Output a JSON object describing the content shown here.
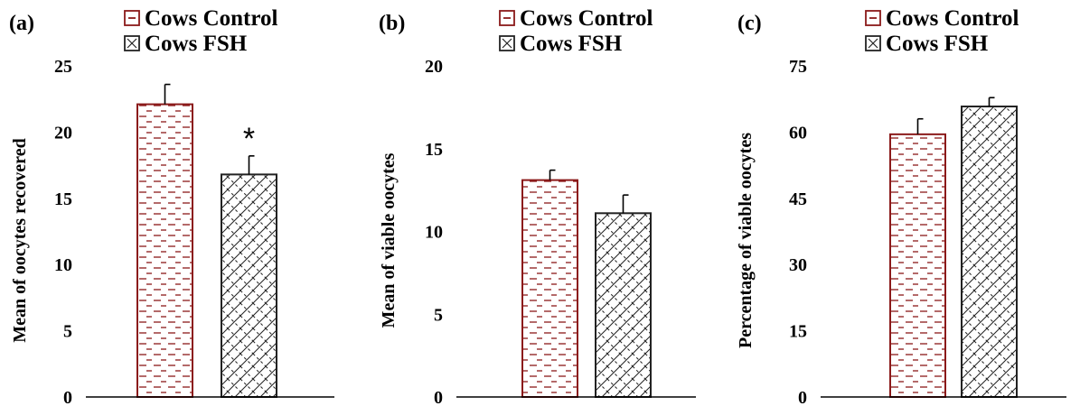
{
  "figure": {
    "legend": [
      {
        "label": "Cows Control",
        "color": "#8b1a1a",
        "pattern": "dashes"
      },
      {
        "label": "Cows FSH",
        "color": "#222222",
        "pattern": "crosshatch"
      }
    ]
  },
  "chart_data": [
    {
      "type": "bar",
      "panel_label": "(a)",
      "title": "",
      "xlabel": "",
      "ylabel": "Mean of oocytes recovered",
      "ylim": [
        0,
        25
      ],
      "yticks": [
        0,
        5,
        10,
        15,
        20,
        25
      ],
      "categories": [
        "Cows Control",
        "Cows FSH"
      ],
      "series": [
        {
          "values": [
            22.1,
            16.8
          ],
          "errors": [
            1.5,
            1.4
          ]
        }
      ],
      "annotations": [
        {
          "category": "Cows FSH",
          "text": "*"
        }
      ],
      "legend_entries": [
        "Cows Control",
        "Cows FSH"
      ],
      "legend_position": "top",
      "grid": false
    },
    {
      "type": "bar",
      "panel_label": "(b)",
      "title": "",
      "xlabel": "",
      "ylabel": "Mean of viable oocytes",
      "ylim": [
        0,
        20
      ],
      "yticks": [
        0,
        5,
        10,
        15,
        20
      ],
      "categories": [
        "Cows Control",
        "Cows FSH"
      ],
      "series": [
        {
          "values": [
            13.1,
            11.1
          ],
          "errors": [
            0.6,
            1.1
          ]
        }
      ],
      "annotations": [],
      "legend_entries": [
        "Cows Control",
        "Cows FSH"
      ],
      "legend_position": "top",
      "grid": false
    },
    {
      "type": "bar",
      "panel_label": "(c)",
      "title": "",
      "xlabel": "",
      "ylabel": "Percentage of viable oocytes",
      "ylim": [
        0,
        75
      ],
      "yticks": [
        0,
        15,
        30,
        45,
        60,
        75
      ],
      "categories": [
        "Cows Control",
        "Cows FSH"
      ],
      "series": [
        {
          "values": [
            59.5,
            65.8
          ],
          "errors": [
            3.5,
            2.0
          ]
        }
      ],
      "annotations": [],
      "legend_entries": [
        "Cows Control",
        "Cows FSH"
      ],
      "legend_position": "top",
      "grid": false
    }
  ]
}
